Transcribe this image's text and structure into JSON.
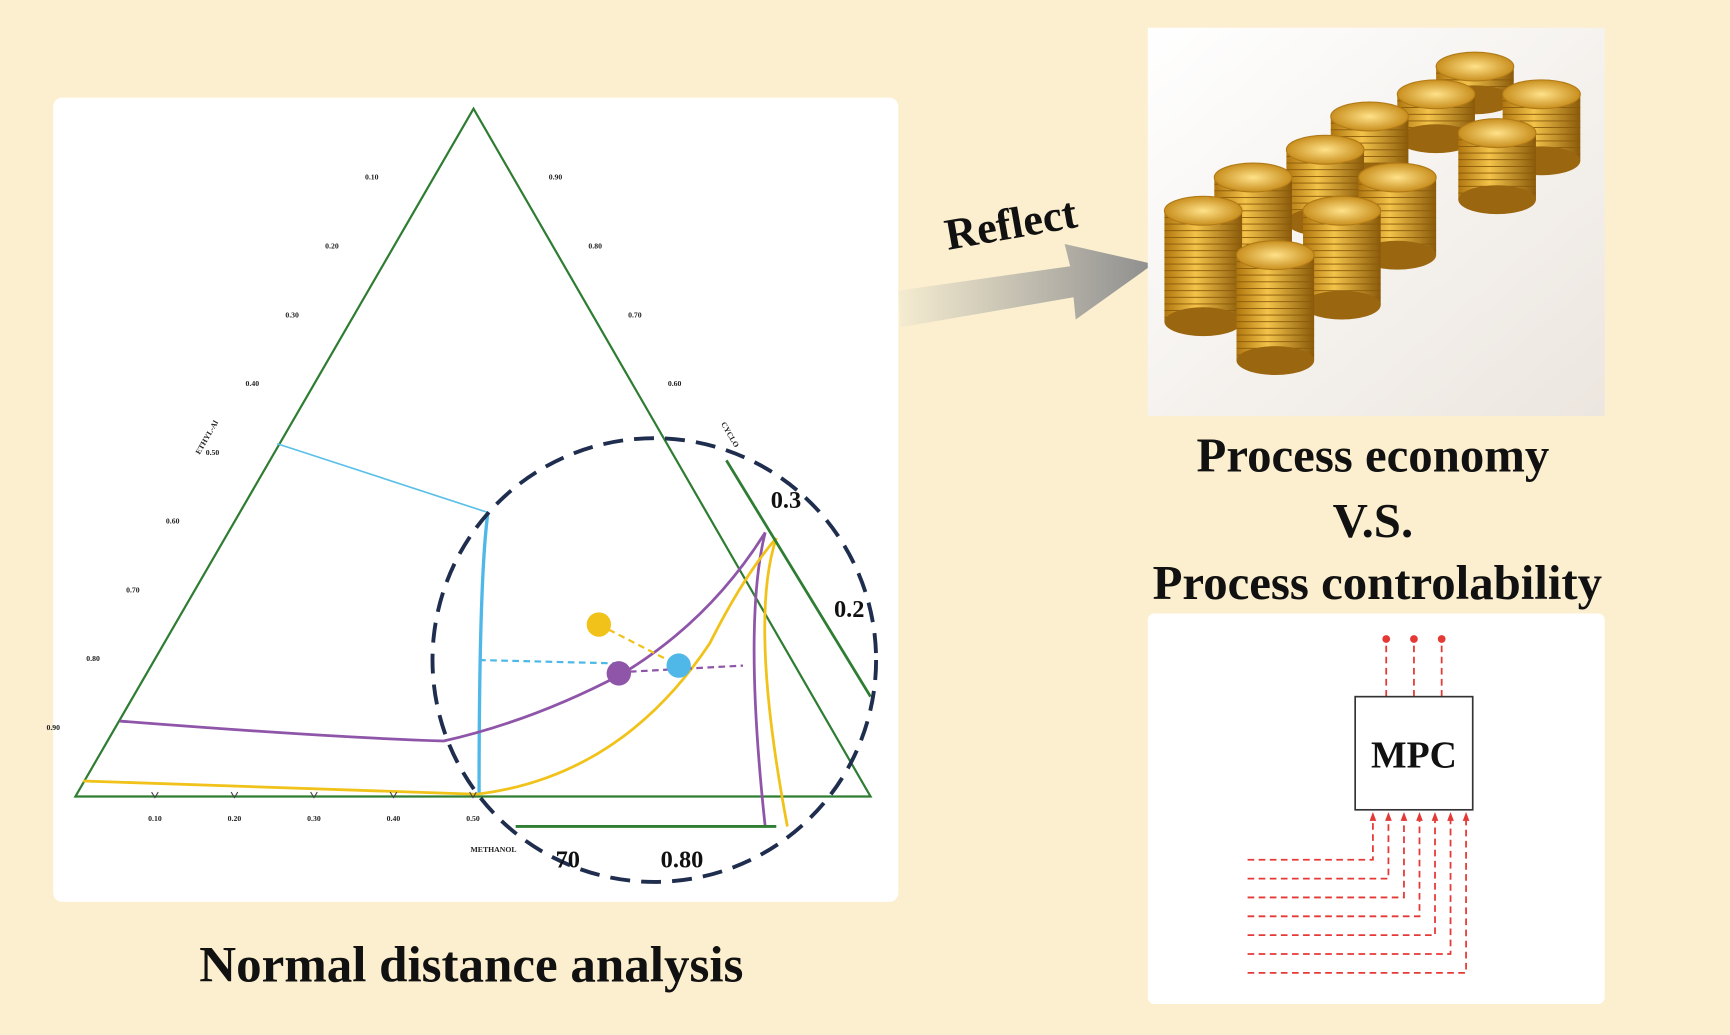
{
  "title": "Normal distance analysis",
  "arrow_label": "Reflect",
  "comparison": {
    "line1": "Process economy",
    "line2": "V.S.",
    "line3": "Process controlability"
  },
  "controller": {
    "label": "MPC"
  },
  "ternary": {
    "left_axis_label": "ETHYL-Al",
    "right_axis_label": "CYCLO",
    "bottom_axis_label": "METHANOL",
    "left_ticks": [
      "0.10",
      "0.20",
      "0.30",
      "0.40",
      "0.50",
      "0.60",
      "0.70",
      "0.80",
      "0.90"
    ],
    "right_ticks": [
      "0.90",
      "0.80",
      "0.70",
      "0.60"
    ],
    "bottom_ticks": [
      "0.10",
      "0.20",
      "0.30",
      "0.40",
      "0.50"
    ],
    "zoom_labels": [
      "0.3",
      "0.2",
      "70",
      "0.80"
    ]
  }
}
